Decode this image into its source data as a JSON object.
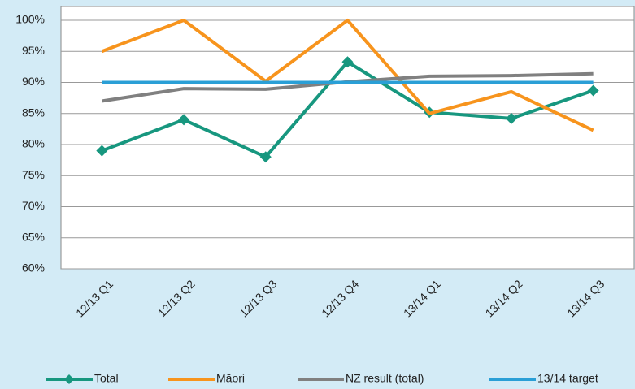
{
  "chart_data": {
    "type": "line",
    "categories": [
      "12/13 Q1",
      "12/13 Q2",
      "12/13 Q3",
      "12/13 Q4",
      "13/14 Q1",
      "13/14 Q2",
      "13/14 Q3"
    ],
    "series": [
      {
        "name": "Total",
        "color": "#17977f",
        "marker": "diamond",
        "values": [
          79,
          84,
          78,
          93.3,
          85.2,
          84.2,
          88.7
        ]
      },
      {
        "name": "Māori",
        "color": "#f7941d",
        "values": [
          95,
          100,
          90.2,
          100,
          85,
          88.5,
          82.3
        ]
      },
      {
        "name": "NZ result (total)",
        "color": "#808080",
        "values": [
          87,
          89,
          88.9,
          90.1,
          91,
          91.1,
          91.4
        ]
      },
      {
        "name": "13/14 target",
        "color": "#2a9fd6",
        "values": [
          90,
          90,
          90,
          90,
          90,
          90,
          90
        ]
      }
    ],
    "ylim": [
      60,
      100
    ],
    "yticks": [
      {
        "value": 60,
        "label": "60%"
      },
      {
        "value": 65,
        "label": "65%"
      },
      {
        "value": 70,
        "label": "70%"
      },
      {
        "value": 75,
        "label": "75%"
      },
      {
        "value": 80,
        "label": "80%"
      },
      {
        "value": 85,
        "label": "85%"
      },
      {
        "value": 90,
        "label": "90%"
      },
      {
        "value": 95,
        "label": "95%"
      },
      {
        "value": 100,
        "label": "100%"
      }
    ],
    "grid": true,
    "legend": "bottom"
  }
}
